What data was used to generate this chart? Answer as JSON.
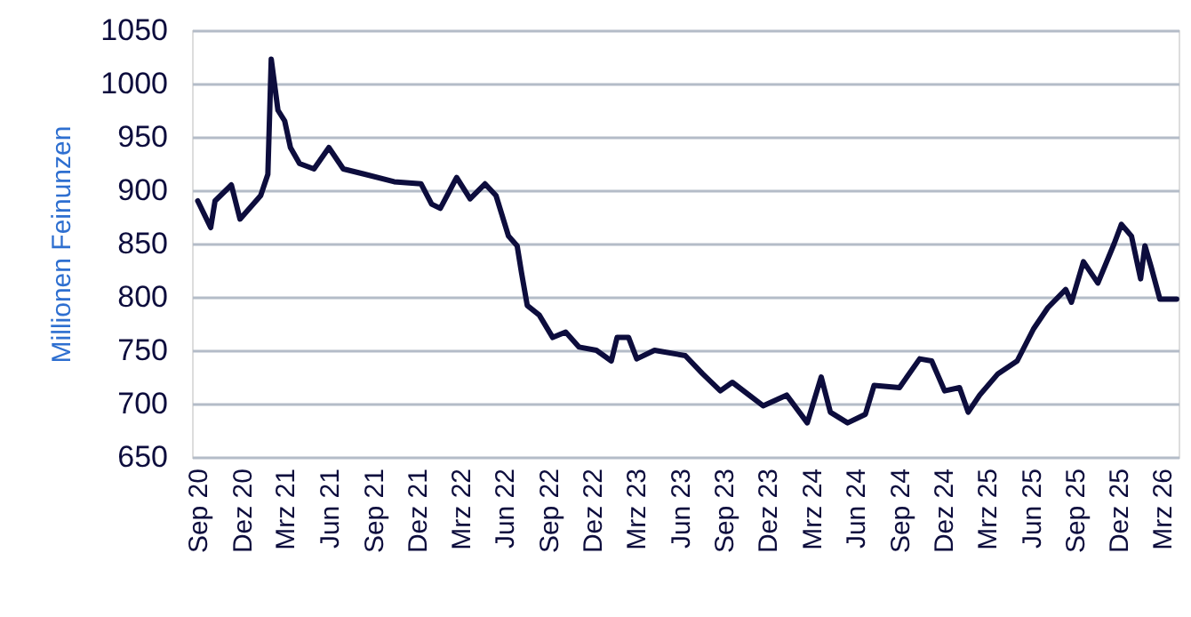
{
  "chart_data": {
    "type": "line",
    "ylabel": "Millionen Feinunzen",
    "x": [
      "2020-09-01",
      "2020-09-28",
      "2020-10-07",
      "2020-11-10",
      "2020-11-28",
      "2021-01-10",
      "2021-01-25",
      "2021-02-01",
      "2021-02-15",
      "2021-03-01",
      "2021-03-13",
      "2021-04-01",
      "2021-05-01",
      "2021-06-01",
      "2021-07-01",
      "2021-08-15",
      "2021-10-15",
      "2021-12-10",
      "2022-01-01",
      "2022-01-19",
      "2022-02-22",
      "2022-03-22",
      "2022-04-22",
      "2022-05-15",
      "2022-06-10",
      "2022-06-28",
      "2022-07-07",
      "2022-07-19",
      "2022-08-13",
      "2022-09-10",
      "2022-10-07",
      "2022-11-04",
      "2022-12-10",
      "2023-01-10",
      "2023-01-22",
      "2023-02-15",
      "2023-03-04",
      "2023-04-10",
      "2023-06-13",
      "2023-07-19",
      "2023-08-25",
      "2023-09-19",
      "2023-11-22",
      "2024-01-10",
      "2024-02-22",
      "2024-03-22",
      "2024-04-10",
      "2024-05-16",
      "2024-06-22",
      "2024-07-10",
      "2024-09-01",
      "2024-10-13",
      "2024-11-07",
      "2024-12-04",
      "2025-01-04",
      "2025-01-22",
      "2025-02-15",
      "2025-03-25",
      "2025-05-04",
      "2025-06-07",
      "2025-07-07",
      "2025-08-13",
      "2025-08-25",
      "2025-09-19",
      "2025-10-19",
      "2025-11-22",
      "2025-12-07",
      "2025-12-28",
      "2026-01-16",
      "2026-01-25",
      "2026-02-07",
      "2026-02-25",
      "2026-04-01"
    ],
    "series": [
      {
        "color": "#0d0d3d",
        "values": [
          890,
          865,
          890,
          905,
          873,
          895,
          915,
          1023,
          975,
          965,
          940,
          925,
          920,
          940,
          920,
          915,
          908,
          906,
          887,
          883,
          912,
          892,
          906,
          895,
          857,
          848,
          823,
          792,
          783,
          762,
          767,
          753,
          750,
          740,
          762,
          762,
          742,
          750,
          745,
          728,
          712,
          720,
          698,
          708,
          682,
          725,
          692,
          682,
          690,
          717,
          715,
          742,
          740,
          712,
          715,
          692,
          708,
          728,
          740,
          770,
          790,
          807,
          795,
          833,
          813,
          850,
          868,
          857,
          817,
          848,
          828,
          798,
          798
        ]
      }
    ],
    "xlim": [
      "2020-08-20",
      "2026-04-05"
    ],
    "xticks": [
      {
        "value": "2020-09",
        "label": "Sep 20"
      },
      {
        "value": "2020-12",
        "label": "Dez 20"
      },
      {
        "value": "2021-03",
        "label": "Mrz 21"
      },
      {
        "value": "2021-06",
        "label": "Jun 21"
      },
      {
        "value": "2021-09",
        "label": "Sep 21"
      },
      {
        "value": "2021-12",
        "label": "Dez 21"
      },
      {
        "value": "2022-03",
        "label": "Mrz 22"
      },
      {
        "value": "2022-06",
        "label": "Jun 22"
      },
      {
        "value": "2022-09",
        "label": "Sep 22"
      },
      {
        "value": "2022-12",
        "label": "Dez 22"
      },
      {
        "value": "2023-03",
        "label": "Mrz 23"
      },
      {
        "value": "2023-06",
        "label": "Jun 23"
      },
      {
        "value": "2023-09",
        "label": "Sep 23"
      },
      {
        "value": "2023-12",
        "label": "Dez 23"
      },
      {
        "value": "2024-03",
        "label": "Mrz 24"
      },
      {
        "value": "2024-06",
        "label": "Jun 24"
      },
      {
        "value": "2024-09",
        "label": "Sep 24"
      },
      {
        "value": "2024-12",
        "label": "Dez 24"
      },
      {
        "value": "2025-03",
        "label": "Mrz 25"
      },
      {
        "value": "2025-06",
        "label": "Jun 25"
      },
      {
        "value": "2025-09",
        "label": "Sep 25"
      },
      {
        "value": "2025-12",
        "label": "Dez 25"
      },
      {
        "value": "2026-03",
        "label": "Mrz 26"
      }
    ],
    "ylim": [
      650,
      1050
    ],
    "yticks": [
      650,
      700,
      750,
      800,
      850,
      900,
      950,
      1000,
      1050
    ],
    "grid": "y",
    "marker": "none",
    "line_style": "solid"
  }
}
